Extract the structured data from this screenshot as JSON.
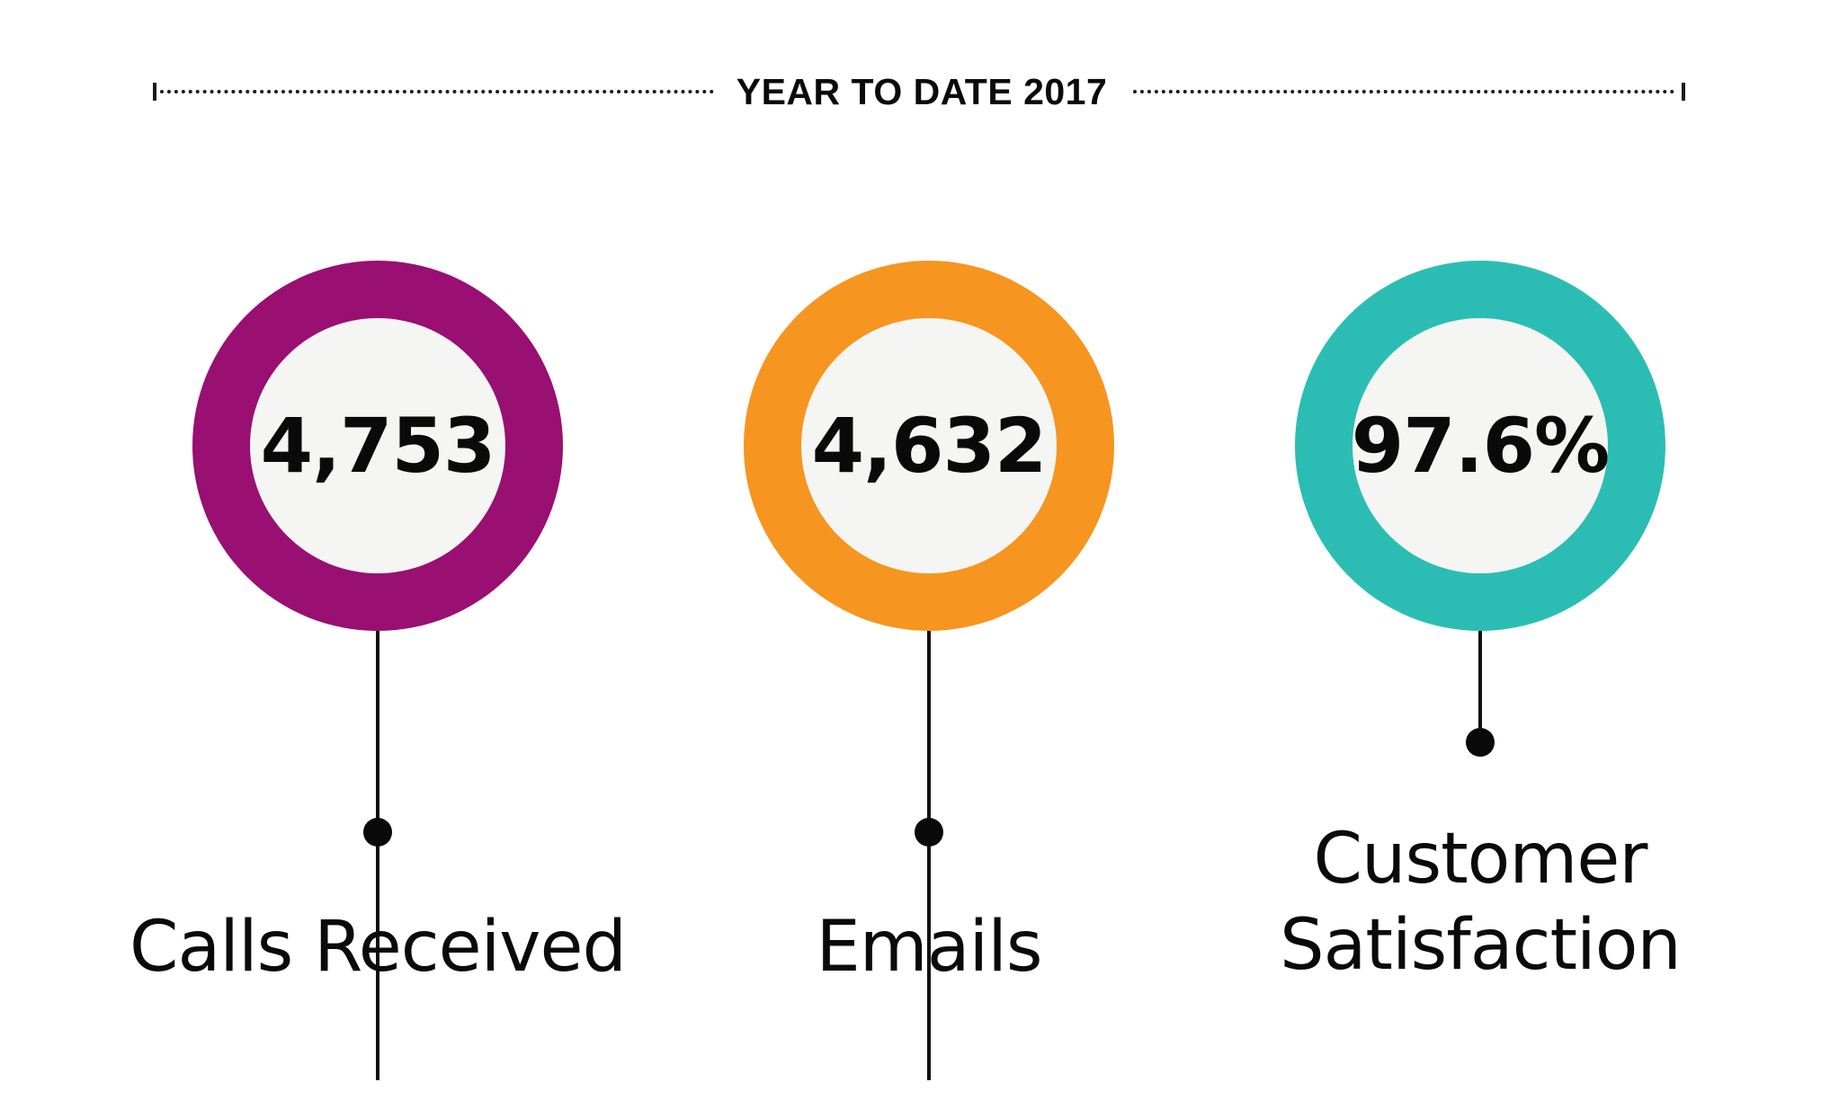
{
  "header": {
    "title": "YEAR TO DATE 2017"
  },
  "stats": [
    {
      "id": "calls",
      "value": "4,753",
      "label": "Calls Received",
      "color": "#990f72"
    },
    {
      "id": "emails",
      "value": "4,632",
      "label": "Emails",
      "color": "#f69520"
    },
    {
      "id": "satisfaction",
      "value": "97.6%",
      "label_line1": "Customer",
      "label_line2": "Satisfaction",
      "color": "#2bbdb4"
    }
  ]
}
